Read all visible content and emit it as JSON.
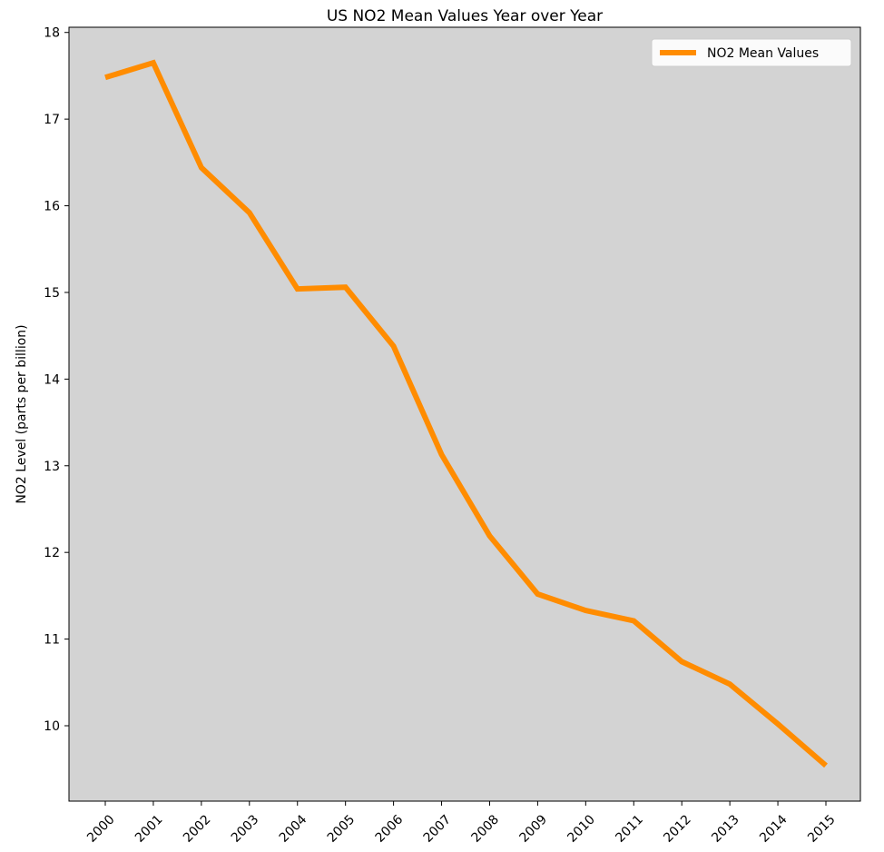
{
  "chart_data": {
    "type": "line",
    "title": "US NO2 Mean Values Year over Year",
    "xlabel": "",
    "ylabel": "NO2 Level (parts per billion)",
    "categories": [
      "2000",
      "2001",
      "2002",
      "2003",
      "2004",
      "2005",
      "2006",
      "2007",
      "2008",
      "2009",
      "2010",
      "2011",
      "2012",
      "2013",
      "2014",
      "2015"
    ],
    "series": [
      {
        "name": "NO2 Mean Values",
        "color": "#ff8c00",
        "values": [
          17.48,
          17.65,
          16.44,
          15.92,
          15.04,
          15.06,
          14.38,
          13.13,
          12.19,
          11.52,
          11.33,
          11.21,
          10.74,
          10.48,
          10.02,
          9.54
        ]
      }
    ],
    "yticks": [
      10,
      11,
      12,
      13,
      14,
      15,
      16,
      17,
      18
    ],
    "ylim": [
      9.13,
      18.06
    ],
    "grid": false,
    "legend_position": "top-right",
    "plot_background": "#d3d3d3"
  }
}
